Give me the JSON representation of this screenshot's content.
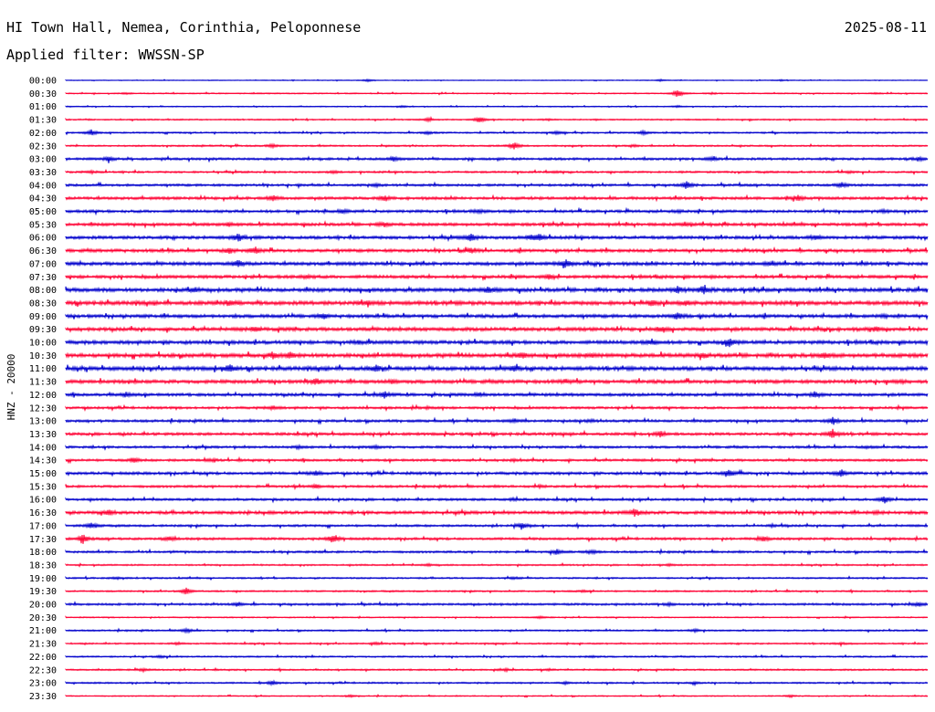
{
  "header": {
    "station": "HI Town Hall, Nemea, Corinthia, Peloponnese",
    "date": "2025-08-11",
    "filter": "Applied filter: WWSSN-SP"
  },
  "colors": {
    "even_trace": "#0000cc",
    "odd_trace": "#ff0033"
  },
  "chart_data": {
    "type": "line",
    "subtype": "helicorder",
    "ylabel": "HNZ - 20000",
    "row_labels": [
      "00:00",
      "00:30",
      "01:00",
      "01:30",
      "02:00",
      "02:30",
      "03:00",
      "03:30",
      "04:00",
      "04:30",
      "05:00",
      "05:30",
      "06:00",
      "06:30",
      "07:00",
      "07:30",
      "08:00",
      "08:30",
      "09:00",
      "09:30",
      "10:00",
      "10:30",
      "11:00",
      "11:30",
      "12:00",
      "12:30",
      "13:00",
      "13:30",
      "14:00",
      "14:30",
      "15:00",
      "15:30",
      "16:00",
      "16:30",
      "17:00",
      "17:30",
      "18:00",
      "18:30",
      "19:00",
      "19:30",
      "20:00",
      "20:30",
      "21:00",
      "21:30",
      "22:00",
      "22:30",
      "23:00",
      "23:30"
    ],
    "trace_colors": [
      "blue",
      "red"
    ],
    "grid": false,
    "legend": "none",
    "traces": [
      {
        "label": "00:00",
        "noise": 0.4,
        "events": [
          [
            0.35,
            1.2
          ],
          [
            0.69,
            1.0
          ],
          [
            0.83,
            0.8
          ]
        ]
      },
      {
        "label": "00:30",
        "noise": 0.6,
        "events": [
          [
            0.07,
            0.8
          ],
          [
            0.71,
            4.5
          ],
          [
            0.75,
            0.8
          ],
          [
            0.94,
            0.8
          ]
        ]
      },
      {
        "label": "01:00",
        "noise": 0.5,
        "events": [
          [
            0.39,
            1.0
          ],
          [
            0.71,
            1.0
          ]
        ]
      },
      {
        "label": "01:30",
        "noise": 0.7,
        "events": [
          [
            0.42,
            2.0
          ],
          [
            0.48,
            3.5
          ],
          [
            0.56,
            0.8
          ]
        ]
      },
      {
        "label": "02:00",
        "noise": 0.8,
        "events": [
          [
            0.03,
            3.0
          ],
          [
            0.42,
            1.5
          ],
          [
            0.57,
            2.0
          ],
          [
            0.67,
            1.8
          ]
        ]
      },
      {
        "label": "02:30",
        "noise": 0.8,
        "events": [
          [
            0.24,
            1.8
          ],
          [
            0.52,
            4.0
          ],
          [
            0.66,
            1.0
          ]
        ]
      },
      {
        "label": "03:00",
        "noise": 1.2,
        "events": [
          [
            0.05,
            2.5
          ],
          [
            0.38,
            2.2
          ],
          [
            0.75,
            2.0
          ],
          [
            0.99,
            1.6
          ]
        ]
      },
      {
        "label": "03:30",
        "noise": 1.0,
        "events": [
          [
            0.03,
            1.2
          ],
          [
            0.31,
            1.2
          ],
          [
            0.57,
            1.0
          ],
          [
            0.91,
            1.0
          ]
        ]
      },
      {
        "label": "04:00",
        "noise": 1.2,
        "events": [
          [
            0.36,
            1.2
          ],
          [
            0.72,
            4.0
          ],
          [
            0.9,
            2.5
          ]
        ]
      },
      {
        "label": "04:30",
        "noise": 1.4,
        "events": [
          [
            0.24,
            3.0
          ],
          [
            0.37,
            2.2
          ],
          [
            0.85,
            2.8
          ]
        ]
      },
      {
        "label": "05:00",
        "noise": 1.4,
        "events": [
          [
            0.32,
            2.0
          ],
          [
            0.48,
            1.5
          ],
          [
            0.71,
            1.0
          ],
          [
            0.95,
            1.4
          ]
        ]
      },
      {
        "label": "05:30",
        "noise": 1.5,
        "events": [
          [
            0.19,
            1.8
          ],
          [
            0.37,
            2.2
          ],
          [
            0.72,
            1.4
          ]
        ]
      },
      {
        "label": "06:00",
        "noise": 1.6,
        "events": [
          [
            0.2,
            4.0
          ],
          [
            0.47,
            4.0
          ],
          [
            0.54,
            2.2
          ],
          [
            0.55,
            3.0
          ],
          [
            0.87,
            2.0
          ]
        ]
      },
      {
        "label": "06:30",
        "noise": 1.6,
        "events": [
          [
            0.19,
            3.0
          ],
          [
            0.22,
            3.5
          ],
          [
            0.47,
            2.5
          ]
        ]
      },
      {
        "label": "07:00",
        "noise": 1.7,
        "events": [
          [
            0.2,
            3.2
          ],
          [
            0.58,
            4.5
          ],
          [
            0.82,
            2.0
          ]
        ]
      },
      {
        "label": "07:30",
        "noise": 1.6,
        "events": [
          [
            0.28,
            1.5
          ],
          [
            0.56,
            2.5
          ]
        ]
      },
      {
        "label": "08:00",
        "noise": 1.9,
        "events": [
          [
            0.15,
            2.0
          ],
          [
            0.49,
            2.8
          ],
          [
            0.71,
            3.0
          ],
          [
            0.74,
            4.0
          ]
        ]
      },
      {
        "label": "08:30",
        "noise": 2.0,
        "events": [
          [
            0.19,
            2.8
          ],
          [
            0.35,
            2.4
          ],
          [
            0.68,
            2.2
          ],
          [
            0.72,
            1.8
          ]
        ]
      },
      {
        "label": "09:00",
        "noise": 1.7,
        "events": [
          [
            0.3,
            2.2
          ],
          [
            0.71,
            3.5
          ],
          [
            0.95,
            1.0
          ]
        ]
      },
      {
        "label": "09:30",
        "noise": 1.8,
        "events": [
          [
            0.22,
            2.8
          ],
          [
            0.69,
            2.0
          ],
          [
            0.94,
            2.4
          ]
        ]
      },
      {
        "label": "10:00",
        "noise": 1.8,
        "events": [
          [
            0.34,
            1.6
          ],
          [
            0.68,
            1.6
          ],
          [
            0.77,
            4.5
          ]
        ]
      },
      {
        "label": "10:30",
        "noise": 2.0,
        "events": [
          [
            0.24,
            2.8
          ],
          [
            0.26,
            3.2
          ],
          [
            0.53,
            2.6
          ],
          [
            0.61,
            1.6
          ],
          [
            0.74,
            2.4
          ],
          [
            0.88,
            2.8
          ]
        ]
      },
      {
        "label": "11:00",
        "noise": 2.0,
        "events": [
          [
            0.19,
            3.2
          ],
          [
            0.36,
            2.8
          ],
          [
            0.52,
            3.0
          ]
        ]
      },
      {
        "label": "11:30",
        "noise": 1.8,
        "events": [
          [
            0.29,
            3.0
          ],
          [
            0.38,
            2.0
          ],
          [
            0.58,
            1.6
          ],
          [
            0.97,
            1.4
          ]
        ]
      },
      {
        "label": "12:00",
        "noise": 1.5,
        "events": [
          [
            0.07,
            2.4
          ],
          [
            0.37,
            3.5
          ],
          [
            0.48,
            2.0
          ],
          [
            0.87,
            3.0
          ]
        ]
      },
      {
        "label": "12:30",
        "noise": 1.2,
        "events": [
          [
            0.24,
            2.0
          ],
          [
            0.42,
            1.0
          ]
        ]
      },
      {
        "label": "13:00",
        "noise": 1.3,
        "events": [
          [
            0.52,
            1.4
          ],
          [
            0.61,
            1.0
          ],
          [
            0.89,
            4.0
          ]
        ]
      },
      {
        "label": "13:30",
        "noise": 1.4,
        "events": [
          [
            0.69,
            3.2
          ],
          [
            0.89,
            5.0
          ]
        ]
      },
      {
        "label": "14:00",
        "noise": 1.2,
        "events": [
          [
            0.27,
            1.4
          ],
          [
            0.36,
            1.2
          ],
          [
            0.93,
            1.0
          ]
        ]
      },
      {
        "label": "14:30",
        "noise": 1.2,
        "events": [
          [
            0.08,
            2.4
          ],
          [
            0.17,
            1.0
          ],
          [
            0.52,
            1.0
          ]
        ]
      },
      {
        "label": "15:00",
        "noise": 1.4,
        "events": [
          [
            0.29,
            2.4
          ],
          [
            0.77,
            3.5
          ],
          [
            0.9,
            3.5
          ]
        ]
      },
      {
        "label": "15:30",
        "noise": 1.2,
        "events": [
          [
            0.29,
            2.2
          ],
          [
            0.55,
            1.0
          ]
        ]
      },
      {
        "label": "16:00",
        "noise": 1.2,
        "events": [
          [
            0.52,
            1.0
          ],
          [
            0.95,
            3.5
          ]
        ]
      },
      {
        "label": "16:30",
        "noise": 1.6,
        "events": [
          [
            0.05,
            2.4
          ],
          [
            0.66,
            4.0
          ],
          [
            0.94,
            1.2
          ]
        ]
      },
      {
        "label": "17:00",
        "noise": 1.1,
        "events": [
          [
            0.03,
            3.2
          ],
          [
            0.53,
            3.0
          ],
          [
            0.82,
            1.2
          ]
        ]
      },
      {
        "label": "17:30",
        "noise": 1.2,
        "events": [
          [
            0.02,
            5.0
          ],
          [
            0.12,
            2.4
          ],
          [
            0.31,
            4.5
          ],
          [
            0.81,
            2.4
          ]
        ]
      },
      {
        "label": "18:00",
        "noise": 1.1,
        "events": [
          [
            0.57,
            3.0
          ],
          [
            0.61,
            2.0
          ]
        ]
      },
      {
        "label": "18:30",
        "noise": 0.8,
        "events": [
          [
            0.42,
            1.0
          ],
          [
            0.7,
            1.0
          ]
        ]
      },
      {
        "label": "19:00",
        "noise": 0.8,
        "events": [
          [
            0.06,
            1.0
          ],
          [
            0.52,
            1.0
          ]
        ]
      },
      {
        "label": "19:30",
        "noise": 0.8,
        "events": [
          [
            0.14,
            4.0
          ],
          [
            0.6,
            1.0
          ]
        ]
      },
      {
        "label": "20:00",
        "noise": 1.1,
        "events": [
          [
            0.2,
            1.2
          ],
          [
            0.7,
            1.2
          ],
          [
            0.99,
            2.4
          ]
        ]
      },
      {
        "label": "20:30",
        "noise": 0.6,
        "events": [
          [
            0.55,
            1.4
          ]
        ]
      },
      {
        "label": "21:00",
        "noise": 0.8,
        "events": [
          [
            0.14,
            2.2
          ],
          [
            0.73,
            1.6
          ]
        ]
      },
      {
        "label": "21:30",
        "noise": 0.8,
        "events": [
          [
            0.13,
            1.2
          ],
          [
            0.36,
            1.2
          ],
          [
            0.9,
            1.0
          ]
        ]
      },
      {
        "label": "22:00",
        "noise": 0.8,
        "events": [
          [
            0.11,
            1.0
          ],
          [
            0.61,
            1.0
          ]
        ]
      },
      {
        "label": "22:30",
        "noise": 0.8,
        "events": [
          [
            0.09,
            1.4
          ],
          [
            0.51,
            1.2
          ],
          [
            0.56,
            1.0
          ]
        ]
      },
      {
        "label": "23:00",
        "noise": 0.8,
        "events": [
          [
            0.24,
            2.2
          ],
          [
            0.58,
            1.2
          ],
          [
            0.73,
            1.0
          ]
        ]
      },
      {
        "label": "23:30",
        "noise": 0.6,
        "events": [
          [
            0.33,
            1.0
          ],
          [
            0.84,
            1.0
          ]
        ]
      }
    ]
  }
}
